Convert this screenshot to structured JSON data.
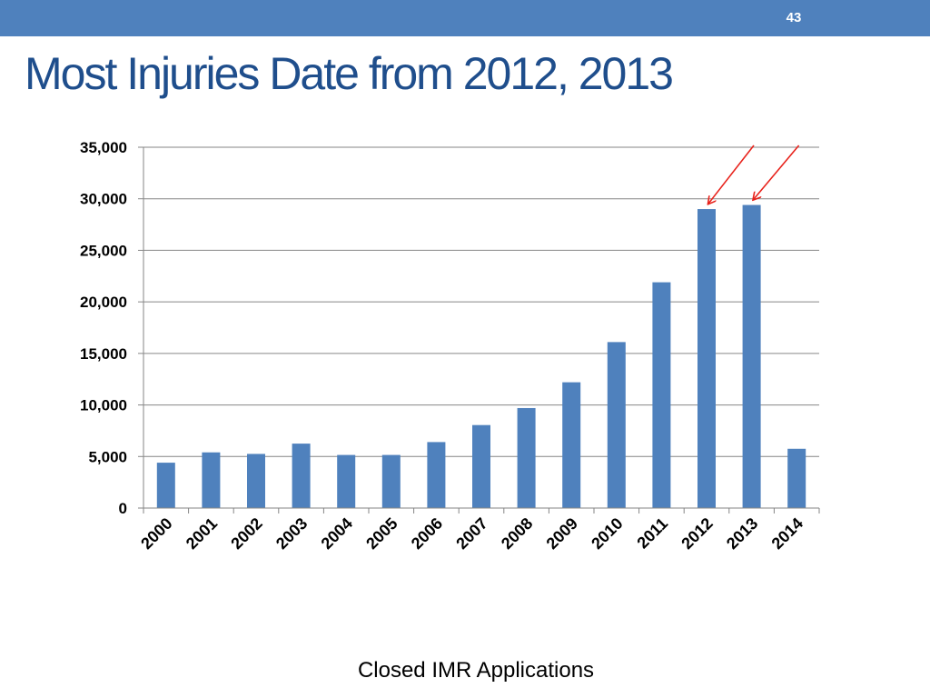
{
  "slide": {
    "page_number": "43",
    "title": "Most Injuries Date from 2012, 2013",
    "caption": "Closed IMR Applications",
    "colors": {
      "header_bar": "#4f81bd",
      "title_text": "#1f4e8c",
      "bar_fill": "#4f81bd",
      "arrow": "#e8231c",
      "gridline": "#868686"
    }
  },
  "chart_data": {
    "type": "bar",
    "title": "",
    "xlabel": "Closed IMR Applications",
    "ylabel": "",
    "categories": [
      "2000",
      "2001",
      "2002",
      "2003",
      "2004",
      "2005",
      "2006",
      "2007",
      "2008",
      "2009",
      "2010",
      "2011",
      "2012",
      "2013",
      "2014"
    ],
    "values": [
      4400,
      5400,
      5250,
      6250,
      5150,
      5150,
      6400,
      8050,
      9700,
      12200,
      16100,
      21900,
      29000,
      29400,
      5750
    ],
    "ylim": [
      0,
      35000
    ],
    "yticks": [
      0,
      5000,
      10000,
      15000,
      20000,
      25000,
      30000,
      35000
    ],
    "ytick_labels": [
      "0",
      "5,000",
      "10,000",
      "15,000",
      "20,000",
      "25,000",
      "30,000",
      "35,000"
    ],
    "grid": true,
    "legend": "none",
    "annotations": [
      {
        "type": "arrow",
        "target_category": "2012"
      },
      {
        "type": "arrow",
        "target_category": "2013"
      }
    ]
  }
}
